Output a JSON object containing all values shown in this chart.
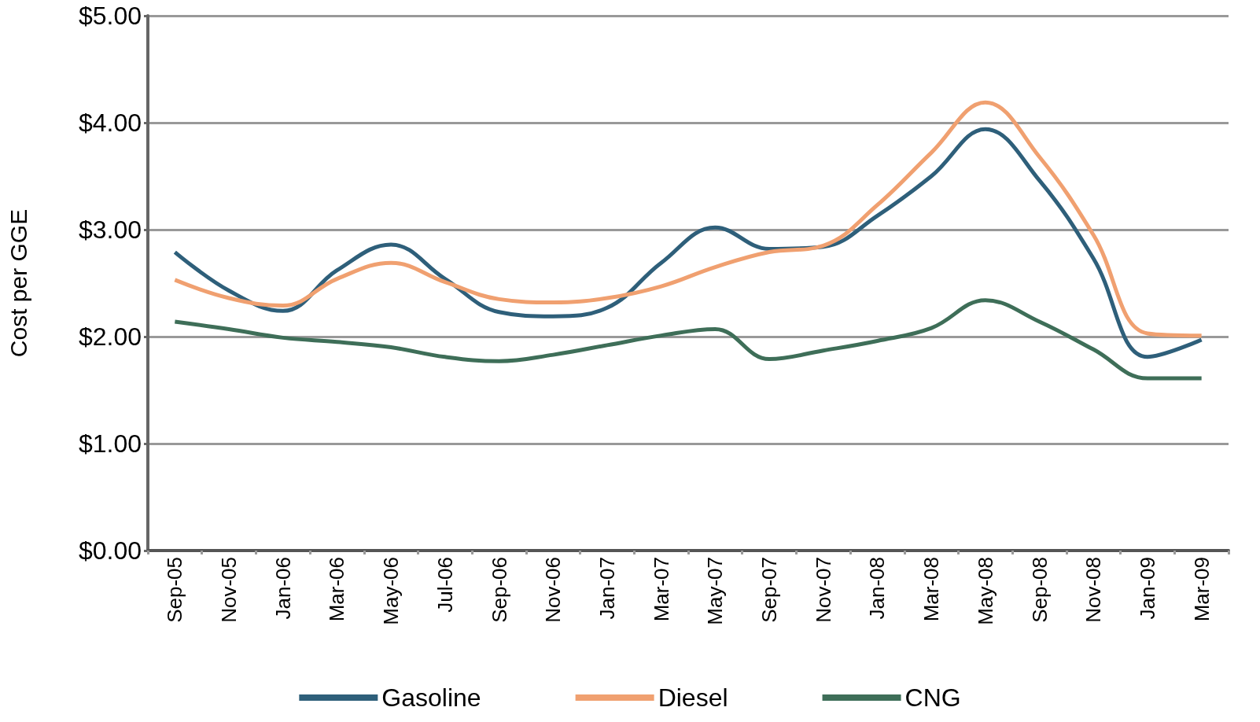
{
  "chart_data": {
    "type": "line",
    "ylabel": "Cost per GGE",
    "categories": [
      "Sep-05",
      "Nov-05",
      "Jan-06",
      "Mar-06",
      "May-06",
      "Jul-06",
      "Sep-06",
      "Nov-06",
      "Jan-07",
      "Mar-07",
      "May-07",
      "Sep-07",
      "Nov-07",
      "Jan-08",
      "Mar-08",
      "May-08",
      "Sep-08",
      "Nov-08",
      "Jan-09",
      "Mar-09"
    ],
    "series": [
      {
        "name": "Gasoline",
        "color": "#2e5f7a",
        "values": [
          2.79,
          2.43,
          2.24,
          2.62,
          2.86,
          2.54,
          2.23,
          2.19,
          2.27,
          2.69,
          3.02,
          2.82,
          2.84,
          3.13,
          3.5,
          3.94,
          3.46,
          2.73,
          1.81,
          1.97
        ]
      },
      {
        "name": "Diesel",
        "color": "#f0a070",
        "values": [
          2.53,
          2.36,
          2.29,
          2.54,
          2.69,
          2.51,
          2.35,
          2.32,
          2.36,
          2.47,
          2.65,
          2.79,
          2.85,
          3.23,
          3.72,
          4.19,
          3.68,
          2.95,
          2.03,
          2.01
        ]
      },
      {
        "name": "CNG",
        "color": "#3e6e58",
        "values": [
          2.14,
          2.07,
          1.99,
          1.95,
          1.9,
          1.81,
          1.77,
          1.83,
          1.92,
          2.01,
          2.07,
          1.79,
          1.87,
          1.96,
          2.08,
          2.34,
          2.14,
          1.88,
          1.61,
          1.61
        ]
      }
    ],
    "ylim": [
      0,
      5
    ],
    "yticks": [
      {
        "value": 0,
        "label": "$0.00"
      },
      {
        "value": 1,
        "label": "$1.00"
      },
      {
        "value": 2,
        "label": "$2.00"
      },
      {
        "value": 3,
        "label": "$3.00"
      },
      {
        "value": 4,
        "label": "$4.00"
      },
      {
        "value": 5,
        "label": "$5.00"
      }
    ],
    "grid": "y",
    "legend": "bottom",
    "marker": "none",
    "line_style": "solid"
  }
}
